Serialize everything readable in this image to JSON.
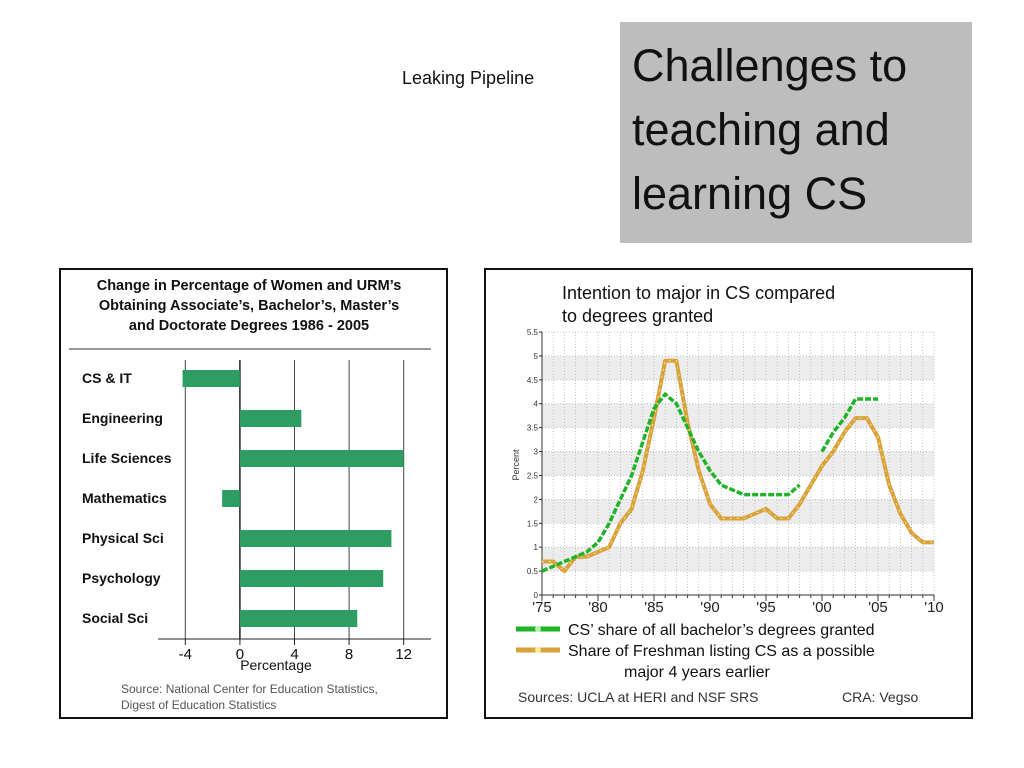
{
  "slide": {
    "subtitle": "Leaking Pipeline",
    "title_lines": [
      "Challenges to",
      "teaching and",
      "learning CS"
    ]
  },
  "colors": {
    "bar_green": "#2e9d62",
    "line_green": "#1fb327",
    "line_orange": "#d8a23c",
    "title_box": "#bdbdbd"
  },
  "chart_data": [
    {
      "type": "bar",
      "orientation": "horizontal",
      "title_lines": [
        "Change in Percentage of Women and URM’s",
        "Obtaining Associate’s, Bachelor’s, Master’s",
        "and Doctorate Degrees 1986 - 2005"
      ],
      "categories": [
        "CS & IT",
        "Engineering",
        "Life Sciences",
        "Mathematics",
        "Physical Sci",
        "Psychology",
        "Social Sci"
      ],
      "values": [
        -4.2,
        4.5,
        12.0,
        -1.3,
        11.1,
        10.5,
        8.6
      ],
      "xlabel": "Percentage",
      "xticks": [
        -4,
        0,
        4,
        8,
        12
      ],
      "xlim": [
        -6,
        14
      ],
      "source_lines": [
        "Source: National Center for Education Statistics,",
        "Digest of Education Statistics"
      ]
    },
    {
      "type": "line",
      "title_lines": [
        "Intention to major in CS compared",
        "to degrees granted"
      ],
      "ylabel": "Percent",
      "xlim": [
        1975,
        2010
      ],
      "ylim": [
        0,
        5.5
      ],
      "xticks": [
        1975,
        1980,
        1985,
        1990,
        1995,
        2000,
        2005,
        2010
      ],
      "xtick_labels": [
        "'75",
        "'80",
        "'85",
        "'90",
        "'95",
        "'00",
        "'05",
        "'10"
      ],
      "yticks": [
        0,
        0.5,
        1,
        1.5,
        2,
        2.5,
        3,
        3.5,
        4,
        4.5,
        5,
        5.5
      ],
      "ytick_labels": [
        "0",
        "0.5",
        "1",
        "1.5",
        "2",
        "2.5",
        "3",
        "3.5",
        "4",
        "4.5",
        "5",
        "5.5"
      ],
      "grid": true,
      "series": [
        {
          "name": "CS’ share of all bachelor’s degrees granted",
          "segments": [
            {
              "x": [
                1975,
                1976,
                1977,
                1978,
                1979,
                1980,
                1981,
                1982,
                1983,
                1984,
                1985,
                1986,
                1987,
                1988,
                1989,
                1990,
                1991,
                1992,
                1993,
                1994,
                1995,
                1996,
                1997,
                1998
              ],
              "y": [
                0.5,
                0.6,
                0.7,
                0.8,
                0.9,
                1.1,
                1.5,
                2.0,
                2.5,
                3.2,
                3.9,
                4.2,
                4.0,
                3.5,
                3.0,
                2.6,
                2.3,
                2.2,
                2.1,
                2.1,
                2.1,
                2.1,
                2.1,
                2.3
              ]
            },
            {
              "x": [
                2000,
                2001,
                2002,
                2003,
                2004,
                2005
              ],
              "y": [
                3.0,
                3.4,
                3.7,
                4.1,
                4.1,
                4.1
              ]
            }
          ]
        },
        {
          "name": "Share of Freshman listing CS as a possible major 4 years earlier",
          "segments": [
            {
              "x": [
                1975,
                1976,
                1977,
                1978,
                1979,
                1980,
                1981,
                1982,
                1983,
                1984,
                1985,
                1986,
                1987,
                1988,
                1989,
                1990,
                1991,
                1992,
                1993,
                1994,
                1995,
                1996,
                1997,
                1998,
                1999,
                2000,
                2001,
                2002,
                2003,
                2004,
                2005,
                2006,
                2007,
                2008,
                2009,
                2010
              ],
              "y": [
                0.7,
                0.7,
                0.5,
                0.8,
                0.8,
                0.9,
                1.0,
                1.5,
                1.8,
                2.6,
                3.7,
                4.9,
                4.9,
                3.6,
                2.6,
                1.9,
                1.6,
                1.6,
                1.6,
                1.7,
                1.8,
                1.6,
                1.6,
                1.9,
                2.3,
                2.7,
                3.0,
                3.4,
                3.7,
                3.7,
                3.3,
                2.3,
                1.7,
                1.3,
                1.1,
                1.1
              ]
            }
          ]
        }
      ],
      "legend": {
        "placement": "bottom",
        "entries": [
          {
            "text": "CS’ share of all bachelor’s degrees granted"
          },
          {
            "text": "Share of Freshman listing CS as a possible",
            "text2": "major 4 years earlier"
          }
        ]
      },
      "sources": "Sources: UCLA at HERI and NSF SRS",
      "credit": "CRA: Vegso"
    }
  ]
}
